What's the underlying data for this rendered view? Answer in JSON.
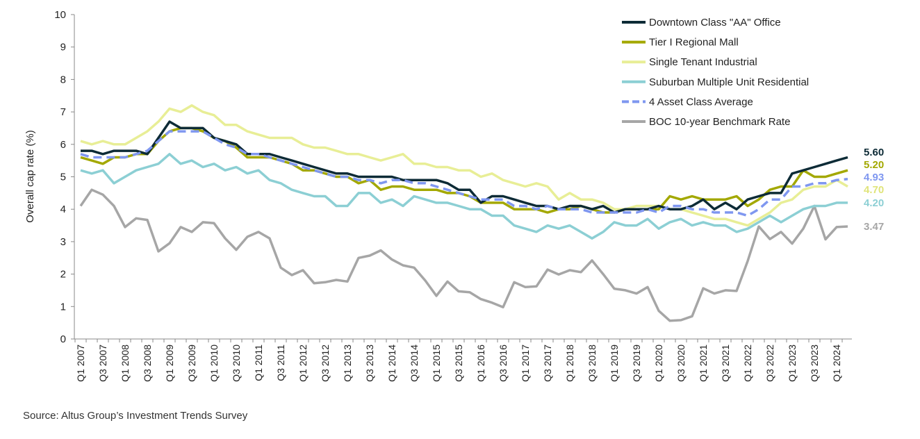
{
  "chart_data": {
    "type": "line",
    "title": "",
    "xlabel": "",
    "ylabel": "Overall cap rate (%)",
    "ylim": [
      0,
      10
    ],
    "yticks": [
      "0",
      "1",
      "2",
      "3",
      "4",
      "5",
      "6",
      "7",
      "8",
      "9",
      "10"
    ],
    "grid": false,
    "legend_position": "top-right",
    "x": [
      "Q1 2007",
      "Q2 2007",
      "Q3 2007",
      "Q4 2007",
      "Q1 2008",
      "Q2 2008",
      "Q3 2008",
      "Q4 2008",
      "Q1 2009",
      "Q2 2009",
      "Q3 2009",
      "Q4 2009",
      "Q1 2010",
      "Q2 2010",
      "Q3 2010",
      "Q4 2010",
      "Q1 2011",
      "Q2 2011",
      "Q3 2011",
      "Q4 2011",
      "Q1 2012",
      "Q2 2012",
      "Q3 2012",
      "Q4 2012",
      "Q1 2013",
      "Q2 2013",
      "Q3 2013",
      "Q4 2013",
      "Q1 2014",
      "Q2 2014",
      "Q3 2014",
      "Q4 2014",
      "Q1 2015",
      "Q2 2015",
      "Q3 2015",
      "Q4 2015",
      "Q1 2016",
      "Q2 2016",
      "Q3 2016",
      "Q4 2016",
      "Q1 2017",
      "Q2 2017",
      "Q3 2017",
      "Q4 2017",
      "Q1 2018",
      "Q2 2018",
      "Q3 2018",
      "Q4 2018",
      "Q1 2019",
      "Q2 2019",
      "Q3 2019",
      "Q4 2019",
      "Q1 2020",
      "Q2 2020",
      "Q3 2020",
      "Q4 2020",
      "Q1 2021",
      "Q2 2021",
      "Q3 2021",
      "Q4 2021",
      "Q1 2022",
      "Q2 2022",
      "Q3 2022",
      "Q4 2022",
      "Q1 2023",
      "Q2 2023",
      "Q3 2023",
      "Q4 2023",
      "Q1 2024",
      "Q2 2024"
    ],
    "xtick_labels": [
      "Q1 2007",
      "Q3 2007",
      "Q1 2008",
      "Q3 2008",
      "Q1 2009",
      "Q3 2009",
      "Q1 2010",
      "Q3 2010",
      "Q1 2011",
      "Q3 2011",
      "Q1 2012",
      "Q3 2012",
      "Q1 2013",
      "Q3 2013",
      "Q1 2014",
      "Q3 2014",
      "Q1 2015",
      "Q3 2015",
      "Q1 2016",
      "Q3 2016",
      "Q1 2017",
      "Q3 2017",
      "Q1 2018",
      "Q3 2018",
      "Q1 2019",
      "Q3 2019",
      "Q1 2020",
      "Q3 2020",
      "Q1 2021",
      "Q3 2021",
      "Q1 2022",
      "Q3 2022",
      "Q1 2023",
      "Q3 2023",
      "Q1 2024"
    ],
    "series": [
      {
        "name": "Downtown Class \"AA\" Office",
        "color": "#0d2b36",
        "dashed": false,
        "end_label": "5.60",
        "values": [
          5.8,
          5.8,
          5.7,
          5.8,
          5.8,
          5.8,
          5.7,
          6.2,
          6.7,
          6.5,
          6.5,
          6.5,
          6.2,
          6.1,
          6.0,
          5.7,
          5.7,
          5.7,
          5.6,
          5.5,
          5.4,
          5.3,
          5.2,
          5.1,
          5.1,
          5.0,
          5.0,
          5.0,
          5.0,
          4.9,
          4.9,
          4.9,
          4.9,
          4.8,
          4.6,
          4.6,
          4.2,
          4.4,
          4.4,
          4.3,
          4.2,
          4.1,
          4.1,
          4.0,
          4.1,
          4.1,
          4.0,
          4.1,
          3.9,
          4.0,
          4.0,
          4.0,
          4.1,
          4.0,
          4.0,
          4.1,
          4.3,
          4.0,
          4.2,
          4.0,
          4.3,
          4.4,
          4.5,
          4.5,
          5.1,
          5.2,
          5.3,
          5.4,
          5.5,
          5.6
        ]
      },
      {
        "name": "Tier I Regional Mall",
        "color": "#a3a800",
        "dashed": false,
        "end_label": "5.20",
        "values": [
          5.6,
          5.5,
          5.4,
          5.6,
          5.6,
          5.7,
          5.7,
          6.1,
          6.4,
          6.5,
          6.5,
          6.4,
          6.2,
          6.1,
          5.9,
          5.6,
          5.6,
          5.6,
          5.5,
          5.4,
          5.2,
          5.2,
          5.1,
          5.0,
          5.0,
          4.8,
          4.9,
          4.6,
          4.7,
          4.7,
          4.6,
          4.6,
          4.6,
          4.5,
          4.5,
          4.4,
          4.2,
          4.2,
          4.2,
          4.0,
          4.0,
          4.0,
          3.9,
          4.0,
          4.0,
          4.1,
          4.0,
          3.9,
          3.9,
          4.0,
          4.0,
          4.0,
          4.0,
          4.4,
          4.3,
          4.4,
          4.3,
          4.3,
          4.3,
          4.4,
          4.1,
          4.3,
          4.6,
          4.7,
          4.7,
          5.2,
          5.0,
          5.0,
          5.1,
          5.2
        ]
      },
      {
        "name": "Single Tenant Industrial",
        "color": "#e8ee96",
        "dashed": false,
        "end_label": "4.70",
        "values": [
          6.1,
          6.0,
          6.1,
          6.0,
          6.0,
          6.2,
          6.4,
          6.7,
          7.1,
          7.0,
          7.2,
          7.0,
          6.9,
          6.6,
          6.6,
          6.4,
          6.3,
          6.2,
          6.2,
          6.2,
          6.0,
          5.9,
          5.9,
          5.8,
          5.7,
          5.7,
          5.6,
          5.5,
          5.6,
          5.7,
          5.4,
          5.4,
          5.3,
          5.3,
          5.2,
          5.2,
          5.0,
          5.1,
          4.9,
          4.8,
          4.7,
          4.8,
          4.7,
          4.3,
          4.5,
          4.3,
          4.3,
          4.2,
          4.0,
          4.0,
          4.1,
          4.1,
          4.1,
          4.0,
          4.0,
          3.9,
          3.8,
          3.7,
          3.7,
          3.6,
          3.5,
          3.7,
          3.9,
          4.2,
          4.3,
          4.6,
          4.7,
          4.7,
          4.9,
          4.7
        ]
      },
      {
        "name": "Suburban Multiple Unit Residential",
        "color": "#8ccfd4",
        "dashed": false,
        "end_label": "4.20",
        "values": [
          5.2,
          5.1,
          5.2,
          4.8,
          5.0,
          5.2,
          5.3,
          5.4,
          5.7,
          5.4,
          5.5,
          5.3,
          5.4,
          5.2,
          5.3,
          5.1,
          5.2,
          4.9,
          4.8,
          4.6,
          4.5,
          4.4,
          4.4,
          4.1,
          4.1,
          4.5,
          4.5,
          4.2,
          4.3,
          4.1,
          4.4,
          4.3,
          4.2,
          4.2,
          4.1,
          4.0,
          4.0,
          3.8,
          3.8,
          3.5,
          3.4,
          3.3,
          3.5,
          3.4,
          3.5,
          3.3,
          3.1,
          3.3,
          3.6,
          3.5,
          3.5,
          3.7,
          3.4,
          3.6,
          3.7,
          3.5,
          3.6,
          3.5,
          3.5,
          3.3,
          3.4,
          3.6,
          3.8,
          3.6,
          3.8,
          4.0,
          4.1,
          4.1,
          4.2,
          4.2
        ]
      },
      {
        "name": "4 Asset Class Average",
        "color": "#7f97f0",
        "dashed": true,
        "end_label": "4.93",
        "values": [
          5.7,
          5.6,
          5.6,
          5.6,
          5.6,
          5.7,
          5.8,
          6.1,
          6.4,
          6.4,
          6.4,
          6.4,
          6.2,
          6.0,
          5.9,
          5.7,
          5.7,
          5.6,
          5.5,
          5.4,
          5.3,
          5.2,
          5.1,
          5.0,
          5.0,
          4.9,
          4.9,
          4.8,
          4.9,
          4.9,
          4.8,
          4.8,
          4.7,
          4.6,
          4.5,
          4.4,
          4.3,
          4.3,
          4.3,
          4.1,
          4.1,
          4.0,
          4.1,
          4.0,
          4.0,
          4.0,
          3.9,
          3.9,
          3.9,
          3.9,
          3.9,
          4.0,
          3.9,
          4.1,
          4.1,
          4.0,
          4.0,
          3.9,
          3.9,
          3.9,
          3.8,
          4.0,
          4.3,
          4.3,
          4.7,
          4.7,
          4.8,
          4.8,
          4.9,
          4.93
        ]
      },
      {
        "name": "BOC 10-year Benchmark Rate",
        "color": "#a6a6a6",
        "dashed": false,
        "end_label": "3.47",
        "values": [
          4.1,
          4.6,
          4.45,
          4.1,
          3.45,
          3.72,
          3.67,
          2.7,
          2.95,
          3.45,
          3.3,
          3.6,
          3.57,
          3.1,
          2.75,
          3.15,
          3.3,
          3.1,
          2.2,
          1.97,
          2.12,
          1.72,
          1.75,
          1.82,
          1.77,
          2.5,
          2.57,
          2.73,
          2.45,
          2.27,
          2.2,
          1.8,
          1.33,
          1.77,
          1.47,
          1.44,
          1.23,
          1.12,
          0.98,
          1.75,
          1.6,
          1.62,
          2.14,
          1.99,
          2.12,
          2.06,
          2.42,
          2.0,
          1.55,
          1.5,
          1.4,
          1.6,
          0.87,
          0.56,
          0.58,
          0.7,
          1.56,
          1.4,
          1.5,
          1.48,
          2.4,
          3.47,
          3.08,
          3.3,
          2.94,
          3.4,
          4.1,
          3.07,
          3.45,
          3.47
        ]
      }
    ]
  },
  "end_label_colors": [
    "#0d2b36",
    "#a3a800",
    "#e0e47a",
    "#8ccfd4",
    "#7f97f0",
    "#a6a6a6"
  ],
  "source": "Source:  Altus Group’s Investment Trends Survey"
}
